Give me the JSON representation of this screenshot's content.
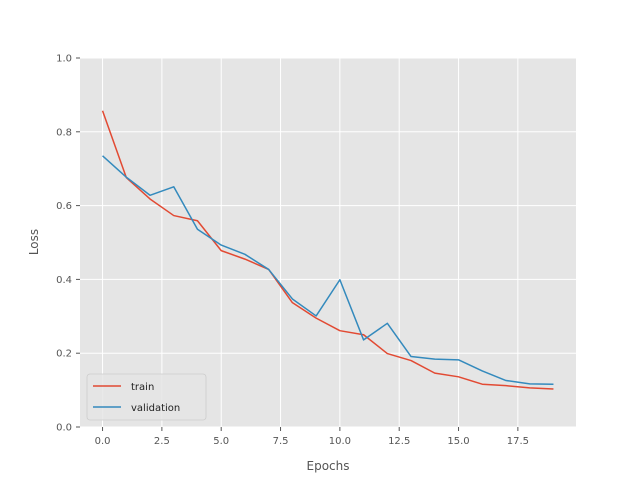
{
  "chart_data": {
    "type": "line",
    "title": "",
    "xlabel": "Epochs",
    "ylabel": "Loss",
    "xlim": [
      -0.95,
      19.95
    ],
    "ylim": [
      0.0,
      1.0
    ],
    "xticks": [
      0.0,
      2.5,
      5.0,
      7.5,
      10.0,
      12.5,
      15.0,
      17.5
    ],
    "xtick_labels": [
      "0.0",
      "2.5",
      "5.0",
      "7.5",
      "10.0",
      "12.5",
      "15.0",
      "17.5"
    ],
    "yticks": [
      0.0,
      0.2,
      0.4,
      0.6,
      0.8,
      1.0
    ],
    "ytick_labels": [
      "0.0",
      "0.2",
      "0.4",
      "0.6",
      "0.8",
      "1.0"
    ],
    "grid": true,
    "legend_position": "lower-left",
    "x": [
      0,
      1,
      2,
      3,
      4,
      5,
      6,
      7,
      8,
      9,
      10,
      11,
      12,
      13,
      14,
      15,
      16,
      17,
      18,
      19
    ],
    "series": [
      {
        "name": "train",
        "color": "#E24A33",
        "values": [
          0.857,
          0.676,
          0.618,
          0.573,
          0.559,
          0.478,
          0.455,
          0.427,
          0.337,
          0.295,
          0.261,
          0.25,
          0.199,
          0.18,
          0.146,
          0.136,
          0.116,
          0.112,
          0.106,
          0.103
        ]
      },
      {
        "name": "validation",
        "color": "#348ABD",
        "values": [
          0.735,
          0.677,
          0.628,
          0.651,
          0.536,
          0.493,
          0.468,
          0.427,
          0.347,
          0.301,
          0.399,
          0.236,
          0.281,
          0.191,
          0.184,
          0.182,
          0.152,
          0.126,
          0.117,
          0.116
        ]
      }
    ]
  }
}
